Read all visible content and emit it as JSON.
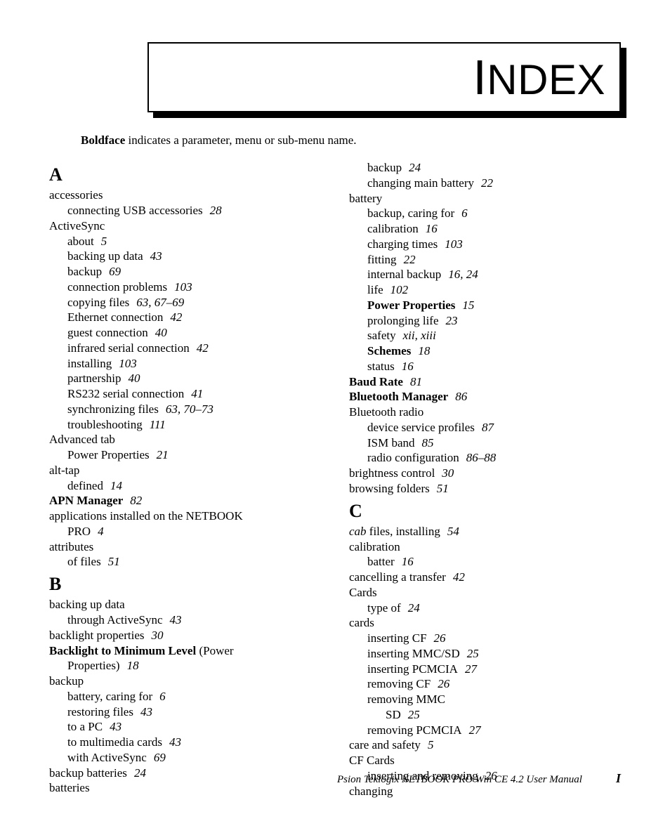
{
  "title": "INDEX",
  "intro_bold": "Boldface",
  "intro_rest": " indicates a parameter, menu or sub-menu name.",
  "footer": {
    "book": "Psion Teklogix NETBOOK PRO Win CE 4.2 User Manual",
    "page": "I"
  },
  "colors": {
    "text": "#000000",
    "background": "#ffffff",
    "border": "#000000",
    "shadow": "#000000"
  },
  "typography": {
    "body_family": "Times New Roman",
    "body_size_pt": 12,
    "letter_size_pt": 18,
    "title_family": "Arial Narrow",
    "title_size_pt": 48
  },
  "col1": [
    {
      "type": "letter",
      "t": "A"
    },
    {
      "lvl": 0,
      "t": "accessories"
    },
    {
      "lvl": 1,
      "t": "connecting USB accessories",
      "pg": "28"
    },
    {
      "lvl": 0,
      "t": "ActiveSync"
    },
    {
      "lvl": 1,
      "t": "about",
      "pg": "5"
    },
    {
      "lvl": 1,
      "t": "backing up data",
      "pg": "43"
    },
    {
      "lvl": 1,
      "t": "backup",
      "pg": "69"
    },
    {
      "lvl": 1,
      "t": "connection problems",
      "pg": "103"
    },
    {
      "lvl": 1,
      "t": "copying files",
      "pg": "63, 67–69"
    },
    {
      "lvl": 1,
      "t": "Ethernet connection",
      "pg": "42"
    },
    {
      "lvl": 1,
      "t": "guest connection",
      "pg": "40"
    },
    {
      "lvl": 1,
      "t": "infrared serial connection",
      "pg": "42"
    },
    {
      "lvl": 1,
      "t": "installing",
      "pg": "103"
    },
    {
      "lvl": 1,
      "t": "partnership",
      "pg": "40"
    },
    {
      "lvl": 1,
      "t": "RS232 serial connection",
      "pg": "41"
    },
    {
      "lvl": 1,
      "t": "synchronizing files",
      "pg": "63, 70–73"
    },
    {
      "lvl": 1,
      "t": "troubleshooting",
      "pg": "111"
    },
    {
      "lvl": 0,
      "t": "Advanced tab"
    },
    {
      "lvl": 1,
      "t": "Power Properties",
      "pg": "21"
    },
    {
      "lvl": 0,
      "t": "alt-tap"
    },
    {
      "lvl": 1,
      "t": "defined",
      "pg": "14"
    },
    {
      "lvl": 0,
      "t": "APN Manager",
      "pg": "82",
      "bold": true
    },
    {
      "lvl": 0,
      "t": "applications installed on the NETBOOK"
    },
    {
      "lvl": 1,
      "t": "PRO",
      "pg": "4"
    },
    {
      "lvl": 0,
      "t": "attributes"
    },
    {
      "lvl": 1,
      "t": "of files",
      "pg": "51"
    },
    {
      "type": "letter",
      "t": "B"
    },
    {
      "lvl": 0,
      "t": "backing up data"
    },
    {
      "lvl": 1,
      "t": "through ActiveSync",
      "pg": "43"
    },
    {
      "lvl": 0,
      "t": "backlight properties",
      "pg": "30"
    },
    {
      "lvl": 0,
      "bold": true,
      "t": "Backlight to Minimum Level",
      "suffix": " (Power"
    },
    {
      "lvl": 1,
      "t": "Properties)",
      "pg": "18"
    },
    {
      "lvl": 0,
      "t": "backup"
    },
    {
      "lvl": 1,
      "t": "battery, caring for",
      "pg": "6"
    },
    {
      "lvl": 1,
      "t": "restoring files",
      "pg": "43"
    },
    {
      "lvl": 1,
      "t": "to a PC",
      "pg": "43"
    },
    {
      "lvl": 1,
      "t": "to multimedia cards",
      "pg": "43"
    },
    {
      "lvl": 1,
      "t": "with ActiveSync",
      "pg": "69"
    },
    {
      "lvl": 0,
      "t": "backup batteries",
      "pg": "24"
    },
    {
      "lvl": 0,
      "t": "batteries"
    }
  ],
  "col2": [
    {
      "lvl": 1,
      "t": "backup",
      "pg": "24"
    },
    {
      "lvl": 1,
      "t": "changing main battery",
      "pg": "22"
    },
    {
      "lvl": 0,
      "t": "battery"
    },
    {
      "lvl": 1,
      "t": "backup, caring for",
      "pg": "6"
    },
    {
      "lvl": 1,
      "t": "calibration",
      "pg": "16"
    },
    {
      "lvl": 1,
      "t": "charging times",
      "pg": "103"
    },
    {
      "lvl": 1,
      "t": "fitting",
      "pg": "22"
    },
    {
      "lvl": 1,
      "t": "internal backup",
      "pg": "16, 24"
    },
    {
      "lvl": 1,
      "t": "life",
      "pg": "102"
    },
    {
      "lvl": 1,
      "t": "Power Properties",
      "pg": "15",
      "bold": true
    },
    {
      "lvl": 1,
      "t": "prolonging life",
      "pg": "23"
    },
    {
      "lvl": 1,
      "t": "safety",
      "pg": "xii, xiii"
    },
    {
      "lvl": 1,
      "t": "Schemes",
      "pg": "18",
      "bold": true
    },
    {
      "lvl": 1,
      "t": "status",
      "pg": "16"
    },
    {
      "lvl": 0,
      "t": "Baud Rate",
      "pg": "81",
      "bold": true
    },
    {
      "lvl": 0,
      "t": "Bluetooth Manager",
      "pg": "86",
      "bold": true
    },
    {
      "lvl": 0,
      "t": "Bluetooth radio"
    },
    {
      "lvl": 1,
      "t": "device service profiles",
      "pg": "87"
    },
    {
      "lvl": 1,
      "t": "ISM band",
      "pg": "85"
    },
    {
      "lvl": 1,
      "t": "radio configuration",
      "pg": "86–88"
    },
    {
      "lvl": 0,
      "t": "brightness control",
      "pg": "30"
    },
    {
      "lvl": 0,
      "t": "browsing folders",
      "pg": "51"
    },
    {
      "type": "letter",
      "t": "C"
    },
    {
      "lvl": 0,
      "italic": true,
      "t": "cab",
      "suffix": " files, installing",
      "pg": "54"
    },
    {
      "lvl": 0,
      "t": "calibration"
    },
    {
      "lvl": 1,
      "t": "batter",
      "pg": "16"
    },
    {
      "lvl": 0,
      "t": "cancelling a transfer",
      "pg": "42"
    },
    {
      "lvl": 0,
      "t": "Cards"
    },
    {
      "lvl": 1,
      "t": "type of",
      "pg": "24"
    },
    {
      "lvl": 0,
      "t": "cards"
    },
    {
      "lvl": 1,
      "t": "inserting CF",
      "pg": "26"
    },
    {
      "lvl": 1,
      "t": "inserting MMC/SD",
      "pg": "25"
    },
    {
      "lvl": 1,
      "t": "inserting PCMCIA",
      "pg": "27"
    },
    {
      "lvl": 1,
      "t": "removing CF",
      "pg": "26"
    },
    {
      "lvl": 1,
      "t": "removing MMC"
    },
    {
      "lvl": 2,
      "t": "SD",
      "pg": "25"
    },
    {
      "lvl": 1,
      "t": "removing PCMCIA",
      "pg": "27"
    },
    {
      "lvl": 0,
      "t": "care and safety",
      "pg": "5"
    },
    {
      "lvl": 0,
      "t": "CF Cards"
    },
    {
      "lvl": 1,
      "t": "inserting and removing",
      "pg": "26"
    },
    {
      "lvl": 0,
      "t": "changing"
    }
  ]
}
